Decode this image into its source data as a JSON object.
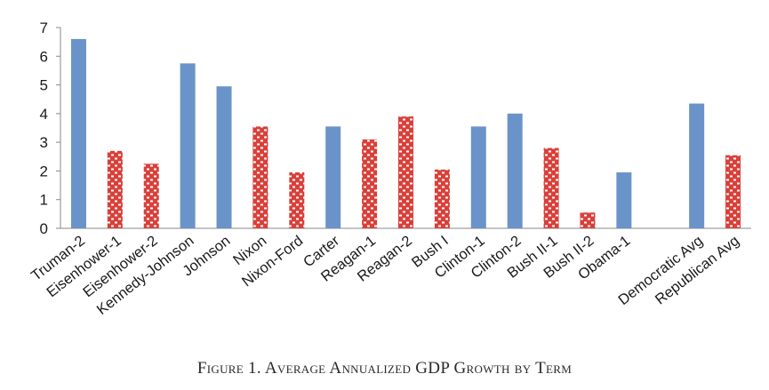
{
  "chart_data": {
    "type": "bar",
    "title": "",
    "xlabel": "",
    "ylabel": "",
    "ylim": [
      0,
      7
    ],
    "yticks": [
      0,
      1,
      2,
      3,
      4,
      5,
      6,
      7
    ],
    "grid": false,
    "categories": [
      "Truman-2",
      "Eisenhower-1",
      "Eisenhower-2",
      "Kennedy-Johnson",
      "Johnson",
      "Nixon",
      "Nixon-Ford",
      "Carter",
      "Reagan-1",
      "Reagan-2",
      "Bush I",
      "Clinton-1",
      "Clinton-2",
      "Bush II-1",
      "Bush II-2",
      "Obama-1",
      "",
      "Democratic Avg",
      "Republican Avg"
    ],
    "values": [
      6.6,
      2.7,
      2.25,
      5.75,
      4.95,
      3.55,
      1.95,
      3.55,
      3.1,
      3.9,
      2.05,
      3.55,
      4.0,
      2.8,
      0.55,
      1.95,
      null,
      4.35,
      2.55
    ],
    "party": [
      "D",
      "R",
      "R",
      "D",
      "D",
      "R",
      "R",
      "D",
      "R",
      "R",
      "R",
      "D",
      "D",
      "R",
      "R",
      "D",
      null,
      "D",
      "R"
    ],
    "colors": {
      "D": "#6a93c9",
      "R": "#d9403a",
      "pattern_light": "#ffffff"
    }
  },
  "caption": "Figure 1. Average Annualized GDP Growth by Term"
}
